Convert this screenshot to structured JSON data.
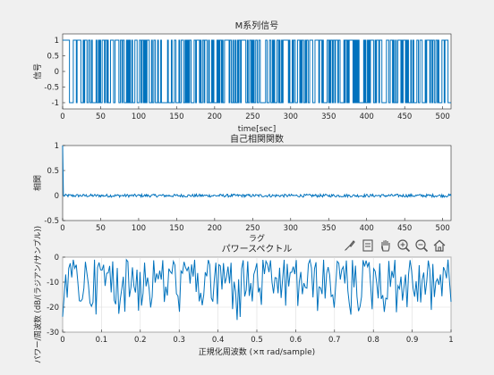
{
  "chart_data": [
    {
      "type": "line",
      "title": "M系列信号",
      "xlabel": "time[sec]",
      "ylabel": "信号",
      "xlim": [
        0,
        511
      ],
      "ylim": [
        -1.2,
        1.2
      ],
      "xticks": [
        0,
        50,
        100,
        150,
        200,
        250,
        300,
        350,
        400,
        450,
        500
      ],
      "yticks": [
        -1,
        -0.5,
        0,
        0.5,
        1
      ],
      "xtick_labels": [
        "0",
        "50",
        "100",
        "150",
        "200",
        "250",
        "300",
        "350",
        "400",
        "450",
        "500"
      ],
      "ytick_labels": [
        "-1",
        "-0.5",
        "0",
        "0.5",
        "1"
      ],
      "grid": false,
      "series": [
        {
          "color": "#0072bd",
          "values_description": "",
          "levels": [
            -1,
            1
          ],
          "length": 511
        }
      ]
    },
    {
      "type": "line",
      "title": "自己相関関数",
      "xlabel": "ラグ",
      "ylabel": "相関",
      "xlim": [
        0,
        511
      ],
      "ylim": [
        -0.5,
        1
      ],
      "xticks": [
        0,
        50,
        100,
        150,
        200,
        250,
        300,
        350,
        400,
        450,
        500
      ],
      "yticks": [
        -0.5,
        0,
        0.5,
        1
      ],
      "xtick_labels": [
        "0",
        "50",
        "100",
        "150",
        "200",
        "250",
        "300",
        "350",
        "400",
        "450",
        "500"
      ],
      "ytick_labels": [
        "-0.5",
        "0",
        "0.5",
        "1"
      ],
      "grid": false,
      "series": [
        {
          "color": "#0072bd",
          "peak_at_lag0": 1,
          "baseline": -0.002,
          "noise_amplitude": 0.03
        }
      ]
    },
    {
      "type": "line",
      "title": "パワースペクトル",
      "xlabel": "正規化周波数 (×π rad/sample)",
      "ylabel": "パワー/周波数 (dB/(ラジアン/サンプル))",
      "xlim": [
        0,
        1
      ],
      "ylim": [
        -30,
        0
      ],
      "xticks": [
        0,
        0.1,
        0.2,
        0.3,
        0.4,
        0.5,
        0.6,
        0.7,
        0.8,
        0.9,
        1
      ],
      "yticks": [
        -30,
        -20,
        -10,
        0
      ],
      "xtick_labels": [
        "0",
        "0.1",
        "0.2",
        "0.3",
        "0.4",
        "0.5",
        "0.6",
        "0.7",
        "0.8",
        "0.9",
        "1"
      ],
      "ytick_labels": [
        "-30",
        "-20",
        "-10",
        "0"
      ],
      "grid": true,
      "series": [
        {
          "color": "#0072bd",
          "mean": -8,
          "range": [
            -28,
            0
          ]
        }
      ]
    }
  ],
  "toolbar": {
    "icons": [
      "brush-icon",
      "data-tip-icon",
      "pan-icon",
      "zoom-in-icon",
      "zoom-out-icon",
      "home-icon"
    ]
  }
}
